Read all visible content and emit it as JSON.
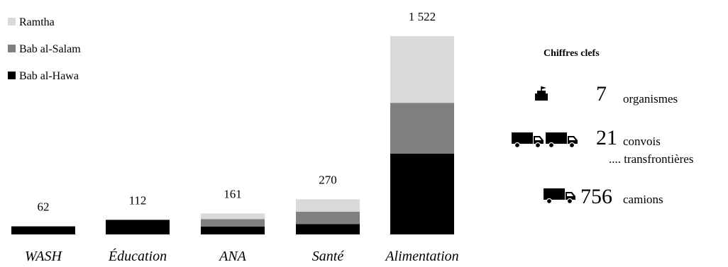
{
  "chart_data": {
    "type": "bar",
    "stacked": true,
    "categories": [
      "WASH",
      "Éducation",
      "ANA",
      "Santé",
      "Alimentation"
    ],
    "series": [
      {
        "name": "Bab al-Hawa",
        "color": "#000000",
        "values": [
          62,
          112,
          61,
          80,
          620
        ]
      },
      {
        "name": "Bab al-Salam",
        "color": "#808080",
        "values": [
          0,
          0,
          56,
          95,
          390
        ]
      },
      {
        "name": "Ramtha",
        "color": "#d9d9d9",
        "values": [
          0,
          0,
          44,
          95,
          512
        ]
      }
    ],
    "totals": [
      "62",
      "112",
      "161",
      "270",
      "1 522"
    ],
    "grid": false,
    "legend_position": "top-left"
  },
  "legend": [
    {
      "label": "Ramtha",
      "color": "#d9d9d9"
    },
    {
      "label": "Bab al-Salam",
      "color": "#808080"
    },
    {
      "label": "Bab al-Hawa",
      "color": "#000000"
    }
  ],
  "key_figures": {
    "title": "Chiffres clefs",
    "items": [
      {
        "icon": "organization-flag-icon",
        "number": "7",
        "label": "organismes"
      },
      {
        "icon": "trucks-convoy-icon",
        "number": "21",
        "label": "convois",
        "sublabel": ".... transfrontières"
      },
      {
        "icon": "truck-icon",
        "number": "756",
        "label": "camions"
      }
    ]
  }
}
